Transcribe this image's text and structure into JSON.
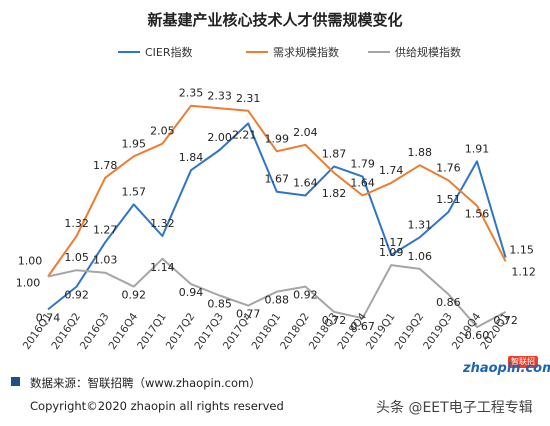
{
  "chart_data": {
    "type": "line",
    "title": "新基建产业核心技术人才供需规模变化",
    "categories": [
      "2016Q1",
      "2016Q2",
      "2016Q3",
      "2016Q4",
      "2017Q1",
      "2017Q2",
      "2017Q3",
      "2017Q4",
      "2018Q1",
      "2018Q2",
      "2018Q3",
      "2018Q4",
      "2019Q1",
      "2019Q2",
      "2019Q3",
      "2019Q4",
      "2020Q1"
    ],
    "series": [
      {
        "name": "CIER指数",
        "color": "#2e75c9",
        "values": [
          0.74,
          0.92,
          1.27,
          1.57,
          1.32,
          1.84,
          2.0,
          2.21,
          1.67,
          1.64,
          1.87,
          1.79,
          1.17,
          1.31,
          1.51,
          1.91,
          1.15
        ]
      },
      {
        "name": "需求规模指数",
        "color": "#ee7d31",
        "values": [
          1.0,
          1.32,
          1.78,
          1.95,
          2.05,
          2.35,
          2.33,
          2.31,
          1.99,
          2.04,
          1.82,
          1.64,
          1.74,
          1.88,
          1.76,
          1.56,
          1.12
        ]
      },
      {
        "name": "供给规模指数",
        "color": "#a5a5a5",
        "values": [
          1.0,
          1.05,
          1.03,
          0.92,
          1.14,
          0.94,
          0.85,
          0.77,
          0.88,
          0.92,
          0.72,
          0.67,
          1.09,
          1.06,
          0.86,
          0.6,
          0.72
        ]
      }
    ],
    "legend_position": "top",
    "grid": false
  },
  "footer": {
    "source": "数据来源：智联招聘（www.zhaopin.com）",
    "copyright": "Copyright©2020 zhaopin all rights reserved",
    "logo_text": "zhaopin.com",
    "logo_badge": "智联招聘",
    "watermark": "头条 @EET电子工程专辑"
  }
}
